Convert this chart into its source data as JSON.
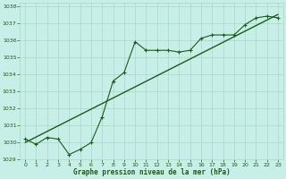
{
  "title": "Graphe pression niveau de la mer (hPa)",
  "bg_color": "#c8eee8",
  "grid_color": "#a8d8c8",
  "line_color": "#1a5c1a",
  "xlim": [
    -0.5,
    23.5
  ],
  "ylim": [
    1029,
    1038.2
  ],
  "yticks": [
    1029,
    1030,
    1031,
    1032,
    1033,
    1034,
    1035,
    1036,
    1037,
    1038
  ],
  "xticks": [
    0,
    1,
    2,
    3,
    4,
    5,
    6,
    7,
    8,
    9,
    10,
    11,
    12,
    13,
    14,
    15,
    16,
    17,
    18,
    19,
    20,
    21,
    22,
    23
  ],
  "series1_x": [
    0,
    1,
    2,
    3,
    4,
    5,
    6,
    7,
    8,
    9,
    10,
    11,
    12,
    13,
    14,
    15,
    16,
    17,
    18,
    19,
    20,
    21,
    22,
    23
  ],
  "series1_y": [
    1030.2,
    1029.9,
    1030.3,
    1030.2,
    1029.3,
    1029.6,
    1030.0,
    1031.5,
    1033.6,
    1034.1,
    1035.9,
    1035.4,
    1035.4,
    1035.4,
    1035.3,
    1035.4,
    1036.1,
    1036.3,
    1036.3,
    1036.3,
    1036.9,
    1037.3,
    1037.4,
    1037.3
  ],
  "trend_x": [
    0,
    23
  ],
  "trend_y": [
    1030.0,
    1037.5
  ]
}
